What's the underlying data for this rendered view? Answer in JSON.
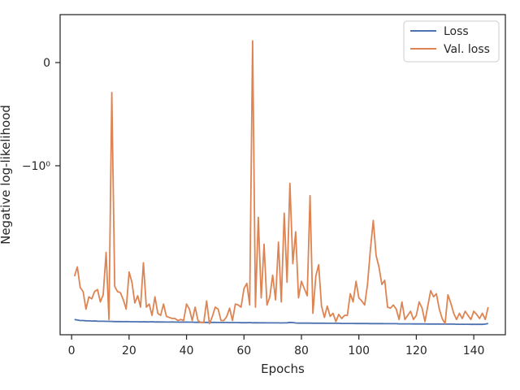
{
  "chart_data": {
    "type": "line",
    "xlabel": "Epochs",
    "ylabel": "Negative log-likelihood",
    "xlim": [
      -4,
      151
    ],
    "x_ticks": [
      0,
      20,
      40,
      60,
      80,
      100,
      120,
      140
    ],
    "y_scale": "symlog",
    "y_ticks": [
      {
        "value": 0,
        "label": "0"
      },
      {
        "value": -1,
        "label": "−10⁰"
      }
    ],
    "grid": false,
    "legend": {
      "position": "top-right"
    },
    "series": [
      {
        "name": "Loss",
        "color": "#4c72b0",
        "x": [
          1,
          2,
          3,
          4,
          5,
          6,
          7,
          8,
          9,
          10,
          11,
          12,
          13,
          14,
          15,
          16,
          17,
          18,
          19,
          20,
          21,
          22,
          23,
          24,
          25,
          26,
          27,
          28,
          29,
          30,
          31,
          32,
          33,
          34,
          35,
          36,
          37,
          38,
          39,
          40,
          41,
          42,
          43,
          44,
          45,
          46,
          47,
          48,
          49,
          50,
          51,
          52,
          53,
          54,
          55,
          56,
          57,
          58,
          59,
          60,
          61,
          62,
          63,
          64,
          65,
          66,
          67,
          68,
          69,
          70,
          71,
          72,
          73,
          74,
          75,
          76,
          77,
          78,
          79,
          80,
          81,
          82,
          83,
          84,
          85,
          86,
          87,
          88,
          89,
          90,
          91,
          92,
          93,
          94,
          95,
          96,
          97,
          98,
          99,
          100,
          101,
          102,
          103,
          104,
          105,
          106,
          107,
          108,
          109,
          110,
          111,
          112,
          113,
          114,
          115,
          116,
          117,
          118,
          119,
          120,
          121,
          122,
          123,
          124,
          125,
          126,
          127,
          128,
          129,
          130,
          131,
          132,
          133,
          134,
          135,
          136,
          137,
          138,
          139,
          140,
          141,
          142,
          143,
          144,
          145
        ],
        "values": [
          -2.49,
          -2.495,
          -2.5,
          -2.5,
          -2.502,
          -2.503,
          -2.505,
          -2.504,
          -2.506,
          -2.507,
          -2.507,
          -2.508,
          -2.508,
          -2.509,
          -2.51,
          -2.51,
          -2.51,
          -2.511,
          -2.51,
          -2.511,
          -2.512,
          -2.512,
          -2.512,
          -2.513,
          -2.512,
          -2.513,
          -2.513,
          -2.512,
          -2.514,
          -2.513,
          -2.514,
          -2.514,
          -2.515,
          -2.515,
          -2.514,
          -2.515,
          -2.516,
          -2.515,
          -2.516,
          -2.515,
          -2.516,
          -2.516,
          -2.517,
          -2.517,
          -2.517,
          -2.518,
          -2.518,
          -2.517,
          -2.518,
          -2.518,
          -2.519,
          -2.519,
          -2.519,
          -2.519,
          -2.52,
          -2.52,
          -2.52,
          -2.52,
          -2.521,
          -2.521,
          -2.521,
          -2.52,
          -2.522,
          -2.521,
          -2.522,
          -2.522,
          -2.522,
          -2.523,
          -2.523,
          -2.523,
          -2.523,
          -2.523,
          -2.524,
          -2.523,
          -2.522,
          -2.518,
          -2.52,
          -2.524,
          -2.525,
          -2.525,
          -2.525,
          -2.525,
          -2.525,
          -2.526,
          -2.526,
          -2.526,
          -2.526,
          -2.526,
          -2.527,
          -2.527,
          -2.527,
          -2.527,
          -2.527,
          -2.528,
          -2.528,
          -2.528,
          -2.528,
          -2.528,
          -2.529,
          -2.529,
          -2.529,
          -2.529,
          -2.529,
          -2.53,
          -2.53,
          -2.53,
          -2.53,
          -2.53,
          -2.531,
          -2.531,
          -2.531,
          -2.531,
          -2.531,
          -2.532,
          -2.532,
          -2.532,
          -2.532,
          -2.532,
          -2.533,
          -2.533,
          -2.533,
          -2.533,
          -2.533,
          -2.534,
          -2.534,
          -2.534,
          -2.534,
          -2.534,
          -2.535,
          -2.535,
          -2.535,
          -2.535,
          -2.535,
          -2.536,
          -2.536,
          -2.536,
          -2.536,
          -2.536,
          -2.537,
          -2.537,
          -2.537,
          -2.537,
          -2.537,
          -2.535,
          -2.528
        ]
      },
      {
        "name": "Val. loss",
        "color": "#dd8452",
        "x": [
          1,
          2,
          3,
          4,
          5,
          6,
          7,
          8,
          9,
          10,
          11,
          12,
          13,
          14,
          15,
          16,
          17,
          18,
          19,
          20,
          21,
          22,
          23,
          24,
          25,
          26,
          27,
          28,
          29,
          30,
          31,
          32,
          33,
          34,
          35,
          36,
          37,
          38,
          39,
          40,
          41,
          42,
          43,
          44,
          45,
          46,
          47,
          48,
          49,
          50,
          51,
          52,
          53,
          54,
          55,
          56,
          57,
          58,
          59,
          60,
          61,
          62,
          63,
          64,
          65,
          66,
          67,
          68,
          69,
          70,
          71,
          72,
          73,
          74,
          75,
          76,
          77,
          78,
          79,
          80,
          81,
          82,
          83,
          84,
          85,
          86,
          87,
          88,
          89,
          90,
          91,
          92,
          93,
          94,
          95,
          96,
          97,
          98,
          99,
          100,
          101,
          102,
          103,
          104,
          105,
          106,
          107,
          108,
          109,
          110,
          111,
          112,
          113,
          114,
          115,
          116,
          117,
          118,
          119,
          120,
          121,
          122,
          123,
          124,
          125,
          126,
          127,
          128,
          129,
          130,
          131,
          132,
          133,
          134,
          135,
          136,
          137,
          138,
          139,
          140,
          141,
          142,
          143,
          144,
          145
        ],
        "values": [
          -2.07,
          -1.98,
          -2.18,
          -2.22,
          -2.39,
          -2.27,
          -2.29,
          -2.22,
          -2.2,
          -2.32,
          -2.25,
          -1.84,
          -2.49,
          -0.29,
          -2.17,
          -2.22,
          -2.23,
          -2.3,
          -2.39,
          -2.03,
          -2.13,
          -2.33,
          -2.26,
          -2.37,
          -1.94,
          -2.37,
          -2.34,
          -2.45,
          -2.27,
          -2.43,
          -2.45,
          -2.34,
          -2.46,
          -2.47,
          -2.48,
          -2.48,
          -2.5,
          -2.49,
          -2.5,
          -2.34,
          -2.39,
          -2.5,
          -2.37,
          -2.5,
          -2.52,
          -2.52,
          -2.31,
          -2.53,
          -2.46,
          -2.37,
          -2.39,
          -2.5,
          -2.5,
          -2.46,
          -2.38,
          -2.5,
          -2.34,
          -2.35,
          -2.37,
          -2.19,
          -2.14,
          -2.35,
          0.21,
          -2.37,
          -1.5,
          -2.28,
          -1.76,
          -2.35,
          -2.27,
          -2.06,
          -2.3,
          -1.74,
          -2.32,
          -1.46,
          -2.13,
          -1.17,
          -1.95,
          -1.64,
          -2.28,
          -2.12,
          -2.19,
          -2.26,
          -1.29,
          -2.43,
          -2.07,
          -1.96,
          -2.36,
          -2.47,
          -2.36,
          -2.46,
          -2.43,
          -2.51,
          -2.44,
          -2.48,
          -2.45,
          -2.45,
          -2.24,
          -2.32,
          -2.12,
          -2.28,
          -2.31,
          -2.35,
          -2.15,
          -1.82,
          -1.53,
          -1.87,
          -1.98,
          -2.15,
          -2.11,
          -2.37,
          -2.38,
          -2.35,
          -2.39,
          -2.49,
          -2.32,
          -2.49,
          -2.45,
          -2.41,
          -2.49,
          -2.45,
          -2.32,
          -2.38,
          -2.51,
          -2.36,
          -2.21,
          -2.27,
          -2.24,
          -2.39,
          -2.48,
          -2.53,
          -2.25,
          -2.33,
          -2.43,
          -2.49,
          -2.43,
          -2.48,
          -2.41,
          -2.45,
          -2.49,
          -2.41,
          -2.44,
          -2.48,
          -2.43,
          -2.49,
          -2.37
        ]
      }
    ]
  }
}
